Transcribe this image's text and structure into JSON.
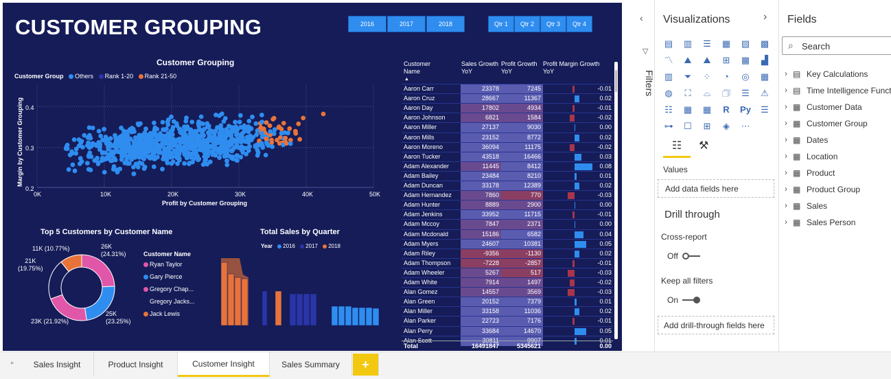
{
  "title": "CUSTOMER GROUPING",
  "years": [
    "2016",
    "2017",
    "2018"
  ],
  "quarters": [
    "Qtr 1",
    "Qtr 2",
    "Qtr 3",
    "Qtr 4"
  ],
  "scatter": {
    "title": "Customer Grouping",
    "legend_title": "Customer Group",
    "legend": [
      {
        "name": "Others",
        "color": "#2f8df0"
      },
      {
        "name": "Rank 1-20",
        "color": "#2a35a8"
      },
      {
        "name": "Rank 21-50",
        "color": "#e8733a"
      }
    ],
    "ylabel": "Margin by Customer Grouping",
    "xlabel": "Profit by Customer Grouping",
    "yticks": [
      "0.4",
      "0.3",
      "0.2"
    ],
    "xticks": [
      "0K",
      "10K",
      "20K",
      "30K",
      "40K",
      "50K"
    ]
  },
  "donut": {
    "title": "Top 5 Customers by Customer Name",
    "legend_title": "Customer Name",
    "labels": [
      "26K\n(24.31%)",
      "25K\n(23.25%)",
      "23K (21.92%)",
      "21K\n(19.75%)",
      "11K (10.77%)"
    ],
    "legend": [
      {
        "name": "Ryan Taylor",
        "color": "#e056a8"
      },
      {
        "name": "Gary Pierce",
        "color": "#2f8df0"
      },
      {
        "name": "Gregory Chap...",
        "color": "#e056a8"
      },
      {
        "name": "Gregory Jacks...",
        "color": "#151c58"
      },
      {
        "name": "Jack Lewis",
        "color": "#e8733a"
      }
    ]
  },
  "quarter_chart": {
    "title": "Total Sales by Quarter",
    "legend_title": "Year",
    "legend": [
      {
        "name": "2016",
        "color": "#2f8df0"
      },
      {
        "name": "2017",
        "color": "#2a35a8"
      },
      {
        "name": "2018",
        "color": "#e8733a"
      }
    ]
  },
  "table": {
    "headers": [
      "Customer Name",
      "Sales Growth YoY",
      "Profit Growth YoY",
      "Profit Margin Growth YoY"
    ],
    "rows": [
      [
        "Aaron Carr",
        "23378",
        "7245",
        "-0.01"
      ],
      [
        "Aaron Cruz",
        "28667",
        "11367",
        "0.02"
      ],
      [
        "Aaron Day",
        "17802",
        "4934",
        "-0.01"
      ],
      [
        "Aaron Johnson",
        "6821",
        "1584",
        "-0.02"
      ],
      [
        "Aaron Miller",
        "27137",
        "9030",
        "0.00"
      ],
      [
        "Aaron Mills",
        "23152",
        "8772",
        "0.02"
      ],
      [
        "Aaron Moreno",
        "36094",
        "11175",
        "-0.02"
      ],
      [
        "Aaron Tucker",
        "43518",
        "16466",
        "0.03"
      ],
      [
        "Adam Alexander",
        "11445",
        "8412",
        "0.08"
      ],
      [
        "Adam Bailey",
        "23484",
        "8210",
        "0.01"
      ],
      [
        "Adam Duncan",
        "33178",
        "12389",
        "0.02"
      ],
      [
        "Adam Hernandez",
        "7860",
        "770",
        "-0.03"
      ],
      [
        "Adam Hunter",
        "8889",
        "2900",
        "0.00"
      ],
      [
        "Adam Jenkins",
        "33952",
        "11715",
        "-0.01"
      ],
      [
        "Adam Mccoy",
        "7847",
        "2371",
        "0.00"
      ],
      [
        "Adam Mcdonald",
        "15186",
        "6582",
        "0.04"
      ],
      [
        "Adam Myers",
        "24607",
        "10381",
        "0.05"
      ],
      [
        "Adam Riley",
        "-9356",
        "-1130",
        "0.02"
      ],
      [
        "Adam Thompson",
        "-7228",
        "-2857",
        "-0.01"
      ],
      [
        "Adam Wheeler",
        "5267",
        "517",
        "-0.03"
      ],
      [
        "Adam White",
        "7914",
        "1497",
        "-0.02"
      ],
      [
        "Alan Gomez",
        "14557",
        "3569",
        "-0.03"
      ],
      [
        "Alan Green",
        "20152",
        "7379",
        "0.01"
      ],
      [
        "Alan Miller",
        "33158",
        "11036",
        "0.02"
      ],
      [
        "Alan Parker",
        "22723",
        "7176",
        "-0.01"
      ],
      [
        "Alan Perry",
        "33684",
        "14670",
        "0.05"
      ],
      [
        "Alan Scott",
        "30811",
        "9907",
        "0.01"
      ]
    ],
    "total": [
      "Total",
      "16491847",
      "5345621",
      "0.00"
    ]
  },
  "panes": {
    "filters_label": "Filters",
    "viz_title": "Visualizations",
    "fields_title": "Fields",
    "search_placeholder": "Search",
    "values_label": "Values",
    "add_fields": "Add data fields here",
    "drill_title": "Drill through",
    "cross_report": "Cross-report",
    "off": "Off",
    "keep_filters": "Keep all filters",
    "on": "On",
    "add_drill": "Add drill-through fields here"
  },
  "fields": [
    "Key Calculations",
    "Time Intelligence Funct",
    "Customer Data",
    "Customer Group",
    "Dates",
    "Location",
    "Product",
    "Product Group",
    "Sales",
    "Sales Person"
  ],
  "tabs": [
    "Sales Insight",
    "Product Insight",
    "Customer Insight",
    "Sales Summary",
    "+"
  ],
  "colors": {
    "canvas": "#151c58",
    "accent": "#2f8df0",
    "orange": "#e8733a",
    "pink": "#e056a8",
    "yellow": "#f2c811"
  }
}
